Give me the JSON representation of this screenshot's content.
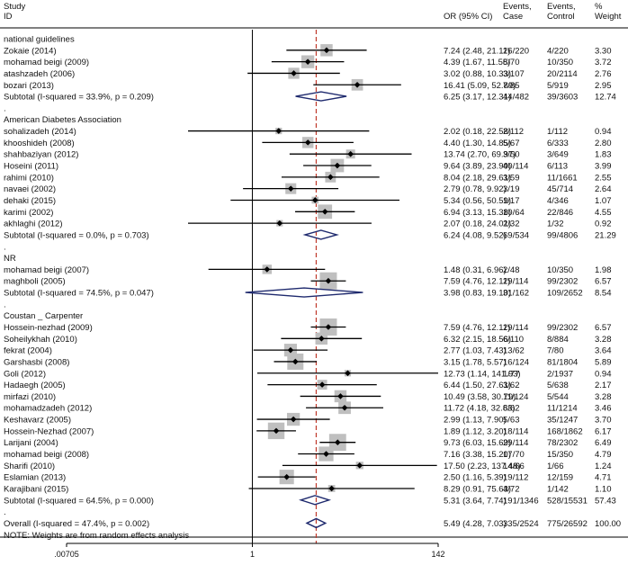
{
  "chart_data": {
    "type": "forest",
    "columns": {
      "study": [
        "Study",
        "ID"
      ],
      "or": "OR (95% CI)",
      "events_case": [
        "Events,",
        "Case"
      ],
      "events_control": [
        "Events,",
        "Control"
      ],
      "weight": [
        "%",
        "Weight"
      ]
    },
    "x_scale": "log",
    "xlim": [
      0.00705,
      142
    ],
    "x_ticks": [
      {
        "value": 0.00705,
        "label": ".00705"
      },
      {
        "value": 1,
        "label": "1"
      },
      {
        "value": 142,
        "label": "142"
      }
    ],
    "overall_line_value": 5.49,
    "rows": [
      {
        "kind": "group",
        "label": "national guidelines"
      },
      {
        "kind": "study",
        "label": "Zokaie (2014)",
        "or": 7.24,
        "lo": 2.48,
        "hi": 21.11,
        "or_text": "7.24 (2.48, 21.11)",
        "case": "26/220",
        "control": "4/220",
        "weight": 3.3,
        "weight_text": "3.30"
      },
      {
        "kind": "study",
        "label": "mohamad beigi (2009)",
        "or": 4.39,
        "lo": 1.67,
        "hi": 11.55,
        "or_text": "4.39 (1.67, 11.55)",
        "case": "8/70",
        "control": "10/350",
        "weight": 3.72,
        "weight_text": "3.72"
      },
      {
        "kind": "study",
        "label": "atashzadeh (2006)",
        "or": 3.02,
        "lo": 0.88,
        "hi": 10.33,
        "or_text": "3.02 (0.88, 10.33)",
        "case": "3/107",
        "control": "20/2114",
        "weight": 2.76,
        "weight_text": "2.76"
      },
      {
        "kind": "study",
        "label": "bozari (2013)",
        "or": 16.41,
        "lo": 5.09,
        "hi": 52.89,
        "or_text": "16.41 (5.09, 52.89)",
        "case": "7/85",
        "control": "5/919",
        "weight": 2.95,
        "weight_text": "2.95"
      },
      {
        "kind": "subtotal",
        "label": "Subtotal  (I-squared = 33.9%, p = 0.209)",
        "or": 6.25,
        "lo": 3.17,
        "hi": 12.31,
        "or_text": "6.25 (3.17, 12.31)",
        "case": "44/482",
        "control": "39/3603",
        "weight": 12.74,
        "weight_text": "12.74"
      },
      {
        "kind": "spacer",
        "label": "."
      },
      {
        "kind": "group",
        "label": "American Diabetes Association"
      },
      {
        "kind": "study",
        "label": "sohalizadeh (2014)",
        "or": 2.02,
        "lo": 0.18,
        "hi": 22.58,
        "or_text": "2.02 (0.18, 22.58)",
        "case": "2/112",
        "control": "1/112",
        "weight": 0.94,
        "weight_text": "0.94"
      },
      {
        "kind": "study",
        "label": "khooshideh (2008)",
        "or": 4.4,
        "lo": 1.3,
        "hi": 14.85,
        "or_text": "4.40 (1.30, 14.85)",
        "case": "5/67",
        "control": "6/333",
        "weight": 2.8,
        "weight_text": "2.80"
      },
      {
        "kind": "study",
        "label": "shahbaziyan (2012)",
        "or": 13.74,
        "lo": 2.7,
        "hi": 69.97,
        "or_text": "13.74 (2.70, 69.97)",
        "case": "3/50",
        "control": "3/649",
        "weight": 1.83,
        "weight_text": "1.83"
      },
      {
        "kind": "study",
        "label": "Hoseini (2011)",
        "or": 9.64,
        "lo": 3.89,
        "hi": 23.9,
        "or_text": "9.64 (3.89, 23.90)",
        "case": "40/114",
        "control": "6/113",
        "weight": 3.99,
        "weight_text": "3.99"
      },
      {
        "kind": "study",
        "label": "rahimi (2010)",
        "or": 8.04,
        "lo": 2.18,
        "hi": 29.61,
        "or_text": "8.04 (2.18, 29.61)",
        "case": "3/59",
        "control": "11/1661",
        "weight": 2.55,
        "weight_text": "2.55"
      },
      {
        "kind": "study",
        "label": "navaei (2002)",
        "or": 2.79,
        "lo": 0.78,
        "hi": 9.92,
        "or_text": "2.79 (0.78, 9.92)",
        "case": "3/19",
        "control": "45/714",
        "weight": 2.64,
        "weight_text": "2.64"
      },
      {
        "kind": "study",
        "label": "dehaki (2015)",
        "or": 5.34,
        "lo": 0.56,
        "hi": 50.59,
        "or_text": "5.34 (0.56, 50.59)",
        "case": "1/17",
        "control": "4/346",
        "weight": 1.07,
        "weight_text": "1.07"
      },
      {
        "kind": "study",
        "label": "karimi (2002)",
        "or": 6.94,
        "lo": 3.13,
        "hi": 15.38,
        "or_text": "6.94 (3.13, 15.38)",
        "case": "10/64",
        "control": "22/846",
        "weight": 4.55,
        "weight_text": "4.55"
      },
      {
        "kind": "study",
        "label": "akhlaghi (2012)",
        "or": 2.07,
        "lo": 0.18,
        "hi": 24.01,
        "or_text": "2.07 (0.18, 24.01)",
        "case": "2/32",
        "control": "1/32",
        "weight": 0.92,
        "weight_text": "0.92"
      },
      {
        "kind": "subtotal",
        "label": "Subtotal  (I-squared = 0.0%, p = 0.703)",
        "or": 6.24,
        "lo": 4.08,
        "hi": 9.52,
        "or_text": "6.24 (4.08, 9.52)",
        "case": "69/534",
        "control": "99/4806",
        "weight": 21.29,
        "weight_text": "21.29"
      },
      {
        "kind": "spacer",
        "label": "."
      },
      {
        "kind": "group",
        "label": "NR"
      },
      {
        "kind": "study",
        "label": "mohamad beigi (2007)",
        "or": 1.48,
        "lo": 0.31,
        "hi": 6.96,
        "or_text": "1.48 (0.31, 6.96)",
        "case": "2/48",
        "control": "10/350",
        "weight": 1.98,
        "weight_text": "1.98"
      },
      {
        "kind": "study",
        "label": "maghboli (2005)",
        "or": 7.59,
        "lo": 4.76,
        "hi": 12.11,
        "or_text": "7.59 (4.76, 12.11)",
        "case": "29/114",
        "control": "99/2302",
        "weight": 6.57,
        "weight_text": "6.57"
      },
      {
        "kind": "subtotal",
        "label": "Subtotal  (I-squared = 74.5%, p = 0.047)",
        "or": 3.98,
        "lo": 0.83,
        "hi": 19.1,
        "or_text": "3.98 (0.83, 19.10)",
        "case": "31/162",
        "control": "109/2652",
        "weight": 8.54,
        "weight_text": "8.54"
      },
      {
        "kind": "spacer",
        "label": "."
      },
      {
        "kind": "group",
        "label": "Coustan _ Carpenter"
      },
      {
        "kind": "study",
        "label": "Hossein-nezhad  (2009)",
        "or": 7.59,
        "lo": 4.76,
        "hi": 12.11,
        "or_text": "7.59 (4.76, 12.11)",
        "case": "29/114",
        "control": "99/2302",
        "weight": 6.57,
        "weight_text": "6.57"
      },
      {
        "kind": "study",
        "label": "Soheilykhah (2010)",
        "or": 6.32,
        "lo": 2.15,
        "hi": 18.56,
        "or_text": "6.32 (2.15, 18.56)",
        "case": "6/110",
        "control": "8/884",
        "weight": 3.28,
        "weight_text": "3.28"
      },
      {
        "kind": "study",
        "label": "fekrat (2004)",
        "or": 2.77,
        "lo": 1.03,
        "hi": 7.43,
        "or_text": "2.77 (1.03, 7.43)",
        "case": "13/62",
        "control": "7/80",
        "weight": 3.64,
        "weight_text": "3.64"
      },
      {
        "kind": "study",
        "label": "Garshasbi (2008)",
        "or": 3.15,
        "lo": 1.78,
        "hi": 5.57,
        "or_text": "3.15 (1.78, 5.57)",
        "case": "16/124",
        "control": "81/1804",
        "weight": 5.89,
        "weight_text": "5.89"
      },
      {
        "kind": "study",
        "label": "Goli (2012)",
        "or": 12.73,
        "lo": 1.14,
        "hi": 141.93,
        "or_text": "12.73 (1.14, 141.93)",
        "case": "1/77",
        "control": "2/1937",
        "weight": 0.94,
        "weight_text": "0.94"
      },
      {
        "kind": "study",
        "label": "Hadaegh (2005)",
        "or": 6.44,
        "lo": 1.5,
        "hi": 27.61,
        "or_text": "6.44 (1.50, 27.61)",
        "case": "3/62",
        "control": "5/638",
        "weight": 2.17,
        "weight_text": "2.17"
      },
      {
        "kind": "study",
        "label": "mirfazi (2010)",
        "or": 10.49,
        "lo": 3.58,
        "hi": 30.79,
        "or_text": "10.49 (3.58, 30.79)",
        "case": "11/124",
        "control": "5/544",
        "weight": 3.28,
        "weight_text": "3.28"
      },
      {
        "kind": "study",
        "label": "mohamadzadeh (2012)",
        "or": 11.72,
        "lo": 4.18,
        "hi": 32.83,
        "or_text": "11.72 (4.18, 32.83)",
        "case": "6/62",
        "control": "11/1214",
        "weight": 3.46,
        "weight_text": "3.46"
      },
      {
        "kind": "study",
        "label": "Keshavarz (2005)",
        "or": 2.99,
        "lo": 1.13,
        "hi": 7.9,
        "or_text": "2.99 (1.13, 7.90)",
        "case": "5/63",
        "control": "35/1247",
        "weight": 3.7,
        "weight_text": "3.70"
      },
      {
        "kind": "study",
        "label": "Hossein-Nezhad (2007)",
        "or": 1.89,
        "lo": 1.12,
        "hi": 3.2,
        "or_text": "1.89 (1.12, 3.20)",
        "case": "18/114",
        "control": "168/1862",
        "weight": 6.17,
        "weight_text": "6.17"
      },
      {
        "kind": "study",
        "label": "Larijani (2004)",
        "or": 9.73,
        "lo": 6.03,
        "hi": 15.69,
        "or_text": "9.73 (6.03, 15.69)",
        "case": "29/114",
        "control": "78/2302",
        "weight": 6.49,
        "weight_text": "6.49"
      },
      {
        "kind": "study",
        "label": "mohamad beigi (2008)",
        "or": 7.16,
        "lo": 3.38,
        "hi": 15.2,
        "or_text": "7.16 (3.38, 15.20)",
        "case": "17/70",
        "control": "15/350",
        "weight": 4.79,
        "weight_text": "4.79"
      },
      {
        "kind": "study",
        "label": "Sharifi (2010)",
        "or": 17.5,
        "lo": 2.23,
        "hi": 137.48,
        "or_text": "17.50 (2.23, 137.48)",
        "case": "14/66",
        "control": "1/66",
        "weight": 1.24,
        "weight_text": "1.24"
      },
      {
        "kind": "study",
        "label": "Eslamian (2013)",
        "or": 2.5,
        "lo": 1.16,
        "hi": 5.39,
        "or_text": "2.50 (1.16, 5.39)",
        "case": "19/112",
        "control": "12/159",
        "weight": 4.71,
        "weight_text": "4.71"
      },
      {
        "kind": "study",
        "label": "Karajibani (2015)",
        "or": 8.29,
        "lo": 0.91,
        "hi": 75.63,
        "or_text": "8.29 (0.91, 75.63)",
        "case": "4/72",
        "control": "1/142",
        "weight": 1.1,
        "weight_text": "1.10"
      },
      {
        "kind": "subtotal",
        "label": "Subtotal  (I-squared = 64.5%, p = 0.000)",
        "or": 5.31,
        "lo": 3.64,
        "hi": 7.74,
        "or_text": "5.31 (3.64, 7.74)",
        "case": "191/1346",
        "control": "528/15531",
        "weight": 57.43,
        "weight_text": "57.43"
      },
      {
        "kind": "spacer",
        "label": "."
      },
      {
        "kind": "overall",
        "label": "Overall  (I-squared = 47.4%, p = 0.002)",
        "or": 5.49,
        "lo": 4.28,
        "hi": 7.03,
        "or_text": "5.49 (4.28, 7.03)",
        "case": "335/2524",
        "control": "775/26592",
        "weight": 100.0,
        "weight_text": "100.00"
      },
      {
        "kind": "note",
        "label": "NOTE: Weights are from random effects analysis"
      }
    ],
    "colors": {
      "ci_line": "#000000",
      "weight_box": "#bfbfbf",
      "point": "#000000",
      "diamond": "#1f2a6e",
      "overall_line": "#c0392b",
      "rule": "#000000"
    }
  }
}
